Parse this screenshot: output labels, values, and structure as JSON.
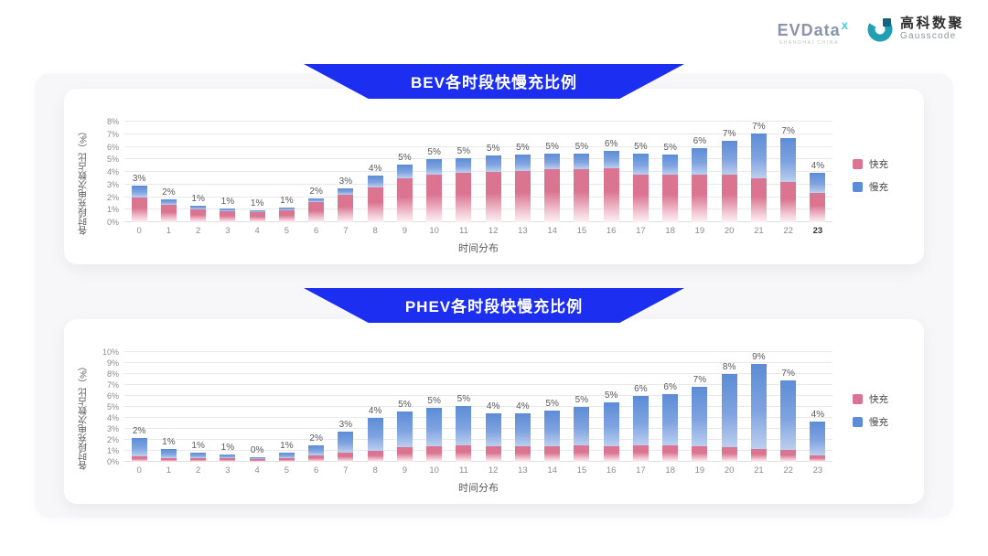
{
  "brand": {
    "evdata_text": "EVData",
    "evdata_sup": "X",
    "evdata_sub": "SHANGHAI CHINA",
    "gausscode_cn": "高科数聚",
    "gausscode_en": "Gausscode"
  },
  "colors": {
    "banner_blue": "#1C2FF1",
    "fast_pink": "#DA7490",
    "slow_blue": "#5C8CD6",
    "panel_bg": "#F7F7F9",
    "card_bg": "#FFFFFF",
    "grid": "#E9E9EC",
    "tick_text": "#8C8C8C",
    "label_text": "#595959",
    "gausscode_teal": "#21A0B4",
    "gausscode_dark": "#16637D"
  },
  "chart_data": [
    {
      "type": "bar",
      "stacked": true,
      "title": "BEV各时段快慢充比例",
      "xlabel": "时间分布",
      "ylabel": "各时段充电次数占比（%）",
      "ylim": [
        0,
        8
      ],
      "ytick_step": 1,
      "ytick_suffix": "%",
      "grid": true,
      "legend_position": "right",
      "categories": [
        "0",
        "1",
        "2",
        "3",
        "4",
        "5",
        "6",
        "7",
        "8",
        "9",
        "10",
        "11",
        "12",
        "13",
        "14",
        "15",
        "16",
        "17",
        "18",
        "19",
        "20",
        "21",
        "22",
        "23"
      ],
      "highlighted_xtick": "23",
      "series": [
        {
          "name": "快充",
          "color": "#DA7490",
          "values": [
            2.0,
            1.4,
            1.0,
            0.85,
            0.8,
            0.95,
            1.6,
            2.2,
            2.8,
            3.5,
            3.8,
            3.9,
            4.0,
            4.1,
            4.2,
            4.2,
            4.3,
            3.8,
            3.8,
            3.8,
            3.8,
            3.6,
            3.2,
            2.3
          ]
        },
        {
          "name": "慢充",
          "color": "#5C8CD6",
          "values": [
            0.9,
            0.45,
            0.3,
            0.25,
            0.15,
            0.2,
            0.3,
            0.5,
            0.9,
            1.1,
            1.2,
            1.2,
            1.3,
            1.3,
            1.25,
            1.25,
            1.4,
            1.65,
            1.6,
            2.1,
            2.7,
            3.6,
            3.5,
            1.6
          ]
        }
      ],
      "bar_labels": [
        "3%",
        "2%",
        "1%",
        "1%",
        "1%",
        "1%",
        "2%",
        "3%",
        "4%",
        "5%",
        "5%",
        "5%",
        "5%",
        "5%",
        "5%",
        "5%",
        "6%",
        "5%",
        "5%",
        "6%",
        "7%",
        "7%",
        "7%",
        "4%"
      ]
    },
    {
      "type": "bar",
      "stacked": true,
      "title": "PHEV各时段快慢充比例",
      "xlabel": "时间分布",
      "ylabel": "各时段充电次数占比（%）",
      "ylim": [
        0,
        10
      ],
      "ytick_step": 1,
      "ytick_suffix": "%",
      "grid": true,
      "legend_position": "right",
      "categories": [
        "0",
        "1",
        "2",
        "3",
        "4",
        "5",
        "6",
        "7",
        "8",
        "9",
        "10",
        "11",
        "12",
        "13",
        "14",
        "15",
        "16",
        "17",
        "18",
        "19",
        "20",
        "21",
        "22",
        "23"
      ],
      "highlighted_xtick": "",
      "series": [
        {
          "name": "快充",
          "color": "#DA7490",
          "values": [
            0.5,
            0.35,
            0.3,
            0.3,
            0.25,
            0.3,
            0.6,
            0.8,
            1.0,
            1.3,
            1.4,
            1.5,
            1.4,
            1.4,
            1.4,
            1.5,
            1.4,
            1.5,
            1.5,
            1.4,
            1.3,
            1.2,
            1.1,
            0.6
          ]
        },
        {
          "name": "慢充",
          "color": "#5C8CD6",
          "values": [
            1.7,
            0.85,
            0.5,
            0.35,
            0.2,
            0.55,
            0.9,
            1.95,
            3.0,
            3.3,
            3.5,
            3.6,
            3.05,
            3.0,
            3.3,
            3.5,
            4.0,
            4.5,
            4.7,
            5.4,
            6.7,
            7.8,
            6.3,
            3.1
          ]
        }
      ],
      "bar_labels": [
        "2%",
        "1%",
        "1%",
        "1%",
        "0%",
        "1%",
        "2%",
        "3%",
        "4%",
        "5%",
        "5%",
        "5%",
        "4%",
        "4%",
        "5%",
        "5%",
        "5%",
        "6%",
        "6%",
        "7%",
        "8%",
        "9%",
        "7%",
        "4%"
      ]
    }
  ]
}
